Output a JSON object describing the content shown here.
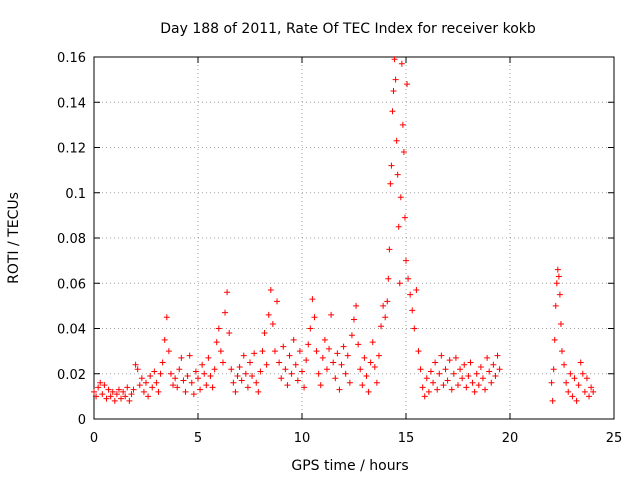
{
  "chart_data": {
    "type": "scatter",
    "title": "Day 188 of 2011, Rate Of TEC Index for receiver kokb",
    "xlabel": "GPS time / hours",
    "ylabel": "ROTI / TECUs",
    "xlim": [
      0,
      25
    ],
    "ylim": [
      0,
      0.16
    ],
    "xticks": [
      0,
      5,
      10,
      15,
      20,
      25
    ],
    "xtick_labels": [
      "0",
      "5",
      "10",
      "15",
      "20",
      "25"
    ],
    "yticks": [
      0,
      0.02,
      0.04,
      0.06,
      0.08,
      0.1,
      0.12,
      0.14,
      0.16
    ],
    "ytick_labels": [
      "0",
      "0.02",
      "0.04",
      "0.06",
      "0.08",
      "0.1",
      "0.12",
      "0.14",
      "0.16"
    ],
    "grid": true,
    "marker": "+",
    "series": [
      {
        "color": "#ff0000",
        "points": [
          [
            0.0,
            0.012
          ],
          [
            0.1,
            0.01
          ],
          [
            0.2,
            0.014
          ],
          [
            0.3,
            0.016
          ],
          [
            0.4,
            0.011
          ],
          [
            0.5,
            0.015
          ],
          [
            0.6,
            0.009
          ],
          [
            0.7,
            0.013
          ],
          [
            0.8,
            0.01
          ],
          [
            0.9,
            0.012
          ],
          [
            1.0,
            0.008
          ],
          [
            1.1,
            0.011
          ],
          [
            1.2,
            0.013
          ],
          [
            1.3,
            0.009
          ],
          [
            1.4,
            0.012
          ],
          [
            1.5,
            0.01
          ],
          [
            1.6,
            0.014
          ],
          [
            1.7,
            0.008
          ],
          [
            1.8,
            0.011
          ],
          [
            1.9,
            0.013
          ],
          [
            2.0,
            0.024
          ],
          [
            2.1,
            0.022
          ],
          [
            2.2,
            0.015
          ],
          [
            2.3,
            0.018
          ],
          [
            2.4,
            0.012
          ],
          [
            2.5,
            0.016
          ],
          [
            2.6,
            0.01
          ],
          [
            2.7,
            0.019
          ],
          [
            2.8,
            0.014
          ],
          [
            2.9,
            0.021
          ],
          [
            3.0,
            0.016
          ],
          [
            3.1,
            0.012
          ],
          [
            3.2,
            0.02
          ],
          [
            3.3,
            0.025
          ],
          [
            3.4,
            0.035
          ],
          [
            3.5,
            0.045
          ],
          [
            3.6,
            0.03
          ],
          [
            3.7,
            0.02
          ],
          [
            3.8,
            0.015
          ],
          [
            3.9,
            0.018
          ],
          [
            4.0,
            0.014
          ],
          [
            4.1,
            0.022
          ],
          [
            4.2,
            0.027
          ],
          [
            4.3,
            0.017
          ],
          [
            4.4,
            0.012
          ],
          [
            4.5,
            0.019
          ],
          [
            4.6,
            0.028
          ],
          [
            4.7,
            0.016
          ],
          [
            4.8,
            0.011
          ],
          [
            4.9,
            0.021
          ],
          [
            5.0,
            0.018
          ],
          [
            5.1,
            0.013
          ],
          [
            5.2,
            0.024
          ],
          [
            5.3,
            0.02
          ],
          [
            5.4,
            0.015
          ],
          [
            5.5,
            0.027
          ],
          [
            5.6,
            0.019
          ],
          [
            5.7,
            0.014
          ],
          [
            5.8,
            0.022
          ],
          [
            5.9,
            0.034
          ],
          [
            6.0,
            0.04
          ],
          [
            6.1,
            0.03
          ],
          [
            6.2,
            0.025
          ],
          [
            6.3,
            0.047
          ],
          [
            6.4,
            0.056
          ],
          [
            6.5,
            0.038
          ],
          [
            6.6,
            0.022
          ],
          [
            6.7,
            0.016
          ],
          [
            6.8,
            0.012
          ],
          [
            6.9,
            0.019
          ],
          [
            7.0,
            0.023
          ],
          [
            7.1,
            0.017
          ],
          [
            7.2,
            0.028
          ],
          [
            7.3,
            0.02
          ],
          [
            7.4,
            0.014
          ],
          [
            7.5,
            0.025
          ],
          [
            7.6,
            0.019
          ],
          [
            7.7,
            0.029
          ],
          [
            7.8,
            0.016
          ],
          [
            7.9,
            0.012
          ],
          [
            8.0,
            0.021
          ],
          [
            8.1,
            0.03
          ],
          [
            8.2,
            0.038
          ],
          [
            8.3,
            0.024
          ],
          [
            8.4,
            0.046
          ],
          [
            8.5,
            0.057
          ],
          [
            8.6,
            0.042
          ],
          [
            8.7,
            0.03
          ],
          [
            8.8,
            0.052
          ],
          [
            8.9,
            0.025
          ],
          [
            9.0,
            0.018
          ],
          [
            9.1,
            0.032
          ],
          [
            9.2,
            0.022
          ],
          [
            9.3,
            0.015
          ],
          [
            9.4,
            0.028
          ],
          [
            9.5,
            0.02
          ],
          [
            9.6,
            0.035
          ],
          [
            9.7,
            0.024
          ],
          [
            9.8,
            0.017
          ],
          [
            9.9,
            0.03
          ],
          [
            10.0,
            0.021
          ],
          [
            10.1,
            0.014
          ],
          [
            10.2,
            0.026
          ],
          [
            10.3,
            0.033
          ],
          [
            10.4,
            0.04
          ],
          [
            10.5,
            0.053
          ],
          [
            10.6,
            0.045
          ],
          [
            10.7,
            0.03
          ],
          [
            10.8,
            0.02
          ],
          [
            10.9,
            0.015
          ],
          [
            11.0,
            0.027
          ],
          [
            11.1,
            0.035
          ],
          [
            11.2,
            0.022
          ],
          [
            11.3,
            0.031
          ],
          [
            11.4,
            0.046
          ],
          [
            11.5,
            0.025
          ],
          [
            11.6,
            0.018
          ],
          [
            11.7,
            0.029
          ],
          [
            11.8,
            0.013
          ],
          [
            11.9,
            0.024
          ],
          [
            12.0,
            0.032
          ],
          [
            12.1,
            0.02
          ],
          [
            12.2,
            0.028
          ],
          [
            12.3,
            0.016
          ],
          [
            12.4,
            0.037
          ],
          [
            12.5,
            0.044
          ],
          [
            12.6,
            0.05
          ],
          [
            12.7,
            0.033
          ],
          [
            12.8,
            0.022
          ],
          [
            12.9,
            0.015
          ],
          [
            13.0,
            0.027
          ],
          [
            13.1,
            0.019
          ],
          [
            13.2,
            0.012
          ],
          [
            13.3,
            0.025
          ],
          [
            13.4,
            0.034
          ],
          [
            13.5,
            0.023
          ],
          [
            13.6,
            0.016
          ],
          [
            13.7,
            0.028
          ],
          [
            13.8,
            0.041
          ],
          [
            13.9,
            0.05
          ],
          [
            14.0,
            0.045
          ],
          [
            14.1,
            0.052
          ],
          [
            14.15,
            0.062
          ],
          [
            14.2,
            0.075
          ],
          [
            14.25,
            0.104
          ],
          [
            14.3,
            0.112
          ],
          [
            14.35,
            0.136
          ],
          [
            14.4,
            0.145
          ],
          [
            14.45,
            0.159
          ],
          [
            14.5,
            0.15
          ],
          [
            14.55,
            0.123
          ],
          [
            14.6,
            0.108
          ],
          [
            14.65,
            0.085
          ],
          [
            14.7,
            0.06
          ],
          [
            14.75,
            0.098
          ],
          [
            14.8,
            0.157
          ],
          [
            14.85,
            0.13
          ],
          [
            14.9,
            0.118
          ],
          [
            14.95,
            0.089
          ],
          [
            15.0,
            0.07
          ],
          [
            15.05,
            0.148
          ],
          [
            15.1,
            0.062
          ],
          [
            15.2,
            0.055
          ],
          [
            15.3,
            0.048
          ],
          [
            15.4,
            0.04
          ],
          [
            15.5,
            0.057
          ],
          [
            15.6,
            0.03
          ],
          [
            15.7,
            0.022
          ],
          [
            15.8,
            0.014
          ],
          [
            15.9,
            0.01
          ],
          [
            16.0,
            0.018
          ],
          [
            16.1,
            0.012
          ],
          [
            16.2,
            0.021
          ],
          [
            16.3,
            0.016
          ],
          [
            16.4,
            0.025
          ],
          [
            16.5,
            0.013
          ],
          [
            16.6,
            0.02
          ],
          [
            16.7,
            0.028
          ],
          [
            16.8,
            0.015
          ],
          [
            16.9,
            0.022
          ],
          [
            17.0,
            0.017
          ],
          [
            17.1,
            0.026
          ],
          [
            17.2,
            0.013
          ],
          [
            17.3,
            0.02
          ],
          [
            17.4,
            0.027
          ],
          [
            17.5,
            0.015
          ],
          [
            17.6,
            0.022
          ],
          [
            17.7,
            0.018
          ],
          [
            17.8,
            0.024
          ],
          [
            17.9,
            0.014
          ],
          [
            18.0,
            0.019
          ],
          [
            18.1,
            0.025
          ],
          [
            18.2,
            0.016
          ],
          [
            18.3,
            0.012
          ],
          [
            18.4,
            0.02
          ],
          [
            18.5,
            0.015
          ],
          [
            18.6,
            0.023
          ],
          [
            18.7,
            0.018
          ],
          [
            18.8,
            0.013
          ],
          [
            18.9,
            0.027
          ],
          [
            19.0,
            0.021
          ],
          [
            19.1,
            0.016
          ],
          [
            19.2,
            0.024
          ],
          [
            19.3,
            0.019
          ],
          [
            19.4,
            0.028
          ],
          [
            19.5,
            0.022
          ],
          [
            22.0,
            0.016
          ],
          [
            22.05,
            0.008
          ],
          [
            22.1,
            0.022
          ],
          [
            22.15,
            0.035
          ],
          [
            22.2,
            0.05
          ],
          [
            22.25,
            0.06
          ],
          [
            22.3,
            0.066
          ],
          [
            22.35,
            0.063
          ],
          [
            22.4,
            0.055
          ],
          [
            22.45,
            0.042
          ],
          [
            22.5,
            0.03
          ],
          [
            22.6,
            0.024
          ],
          [
            22.7,
            0.016
          ],
          [
            22.8,
            0.012
          ],
          [
            22.9,
            0.02
          ],
          [
            23.0,
            0.01
          ],
          [
            23.1,
            0.018
          ],
          [
            23.2,
            0.008
          ],
          [
            23.3,
            0.015
          ],
          [
            23.4,
            0.025
          ],
          [
            23.5,
            0.02
          ],
          [
            23.6,
            0.012
          ],
          [
            23.7,
            0.018
          ],
          [
            23.8,
            0.01
          ],
          [
            23.9,
            0.014
          ],
          [
            24.0,
            0.012
          ]
        ]
      }
    ]
  }
}
